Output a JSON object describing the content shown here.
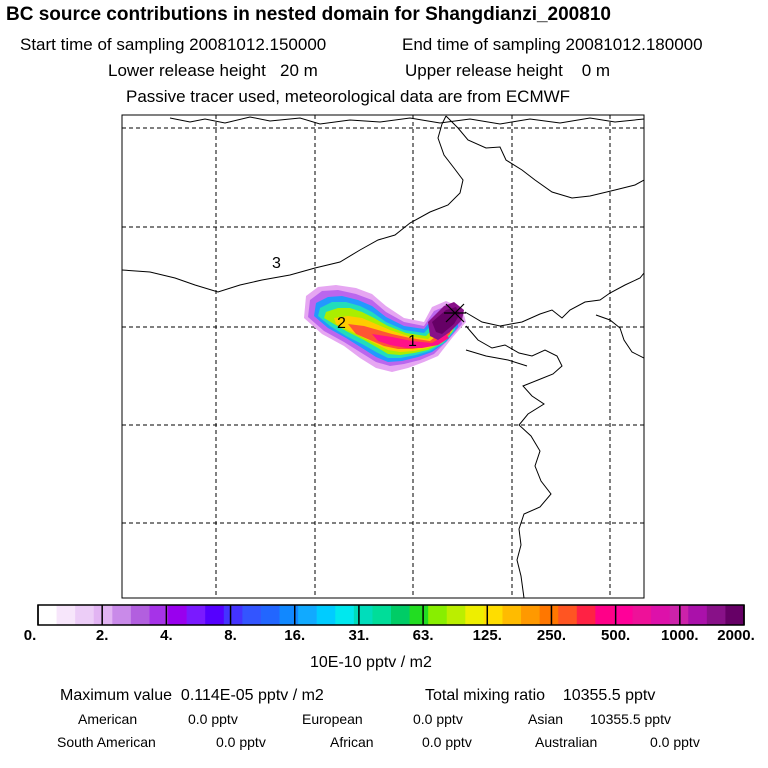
{
  "header": {
    "title": "BC  source contributions in nested domain for Shangdianzi_200810",
    "start_label": "Start time of sampling",
    "start_value": "20081012.150000",
    "end_label": "End time of sampling",
    "end_value": "20081012.180000",
    "lower_label": "Lower release height",
    "lower_value": "20 m",
    "upper_label": "Upper release height",
    "upper_value": "0 m",
    "note": "Passive tracer used, meteorological data are from ECMWF"
  },
  "map": {
    "region_labels": [
      "3",
      "2",
      "1"
    ],
    "receptor_marker": "x-cross-icon"
  },
  "colorbar": {
    "tick_labels": [
      "0.",
      "2.",
      "4.",
      "8.",
      "16.",
      "31.",
      "63.",
      "125.",
      "250.",
      "500.",
      "1000.",
      "2000."
    ],
    "unit_label": "10E-10 pptv / m2",
    "colors": [
      "#ffffff",
      "#f7e6fb",
      "#eccdf7",
      "#e2b4f3",
      "#c98ae9",
      "#b25fdf",
      "#a633e8",
      "#9900ee",
      "#7a1aff",
      "#5500ff",
      "#4433ff",
      "#3355ff",
      "#2266ff",
      "#1188ff",
      "#11aaff",
      "#00ccff",
      "#00e8ee",
      "#00ddbb",
      "#00dd99",
      "#00cc66",
      "#22dd22",
      "#88ee00",
      "#bbee00",
      "#eeee00",
      "#ffdd00",
      "#ffbb00",
      "#ff9900",
      "#ff7700",
      "#ff5522",
      "#ff2244",
      "#ff0088",
      "#ff0099",
      "#ee1199",
      "#dd11aa",
      "#cc22aa",
      "#aa11aa",
      "#881188",
      "#660066"
    ]
  },
  "stats": {
    "max_label": "Maximum value",
    "max_value": "0.114E-05 pptv / m2",
    "total_label": "Total mixing ratio",
    "total_value": "10355.5 pptv",
    "regions": [
      {
        "name": "American",
        "value": "0.0 pptv"
      },
      {
        "name": "European",
        "value": "0.0 pptv"
      },
      {
        "name": "Asian",
        "value": "10355.5 pptv"
      },
      {
        "name": "South American",
        "value": "0.0 pptv"
      },
      {
        "name": "African",
        "value": "0.0 pptv"
      },
      {
        "name": "Australian",
        "value": "0.0 pptv"
      }
    ]
  }
}
